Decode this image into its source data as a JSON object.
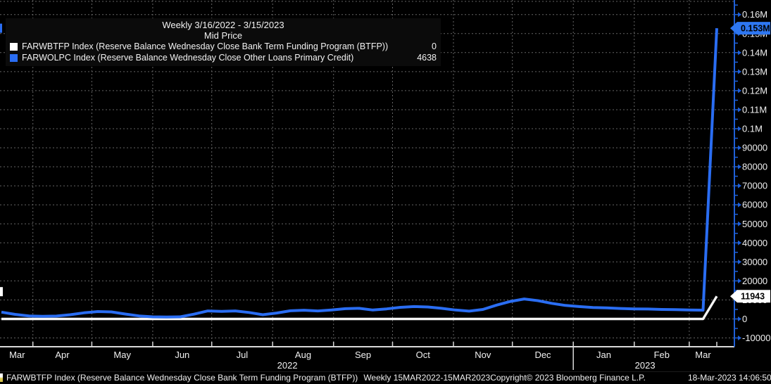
{
  "accent_colors": {
    "line_blue": "#2a6df2",
    "axis_blue": "#1f5fd6",
    "badge_blue": "#2e77f2",
    "grid_gray": "#646464",
    "text_white": "#f0f0f0"
  },
  "legend": {
    "title": "Weekly 3/16/2022 - 3/15/2023",
    "subtitle": "Mid Price",
    "items": [
      {
        "label": "FARWBTFP Index (Reserve Balance Wednesday Close Bank Term Funding Program (BTFP))",
        "value": "0",
        "color": "#ffffff"
      },
      {
        "label": "FARWOLPC Index (Reserve Balance Wednesday Close Other Loans Primary Credit)",
        "value": "4638",
        "color": "#2a6df2"
      }
    ]
  },
  "status_bar": {
    "ticker_text": "FARWBTFP Index (Reserve Balance Wednesday Close Bank Term Funding Program (BTFP))",
    "range_text": "Weekly 15MAR2022-15MAR2023",
    "copyright_text": "Copyright© 2023 Bloomberg Finance L.P.",
    "datetime_text": "18-Mar-2023 14:06:50"
  },
  "chart_data": {
    "type": "line",
    "title": "Weekly 3/16/2022 - 3/15/2023",
    "subtitle": "Mid Price",
    "x_frequency": "weekly",
    "x_start_date": "3/16/2022",
    "x_end_date": "3/15/2023",
    "x_month_labels": [
      "Mar",
      "Apr",
      "May",
      "Jun",
      "Jul",
      "Aug",
      "Sep",
      "Oct",
      "Nov",
      "Dec",
      "Jan",
      "Feb",
      "Mar"
    ],
    "x_month_start_days": [
      16,
      46,
      77,
      107,
      138,
      169,
      199,
      230,
      260,
      291,
      322,
      350
    ],
    "x_year_labels": [
      "2022",
      "2023"
    ],
    "ylim": [
      -15000,
      167000
    ],
    "grid": true,
    "y_ticks": [
      {
        "v": 160000,
        "label": "0.16M"
      },
      {
        "v": 150000,
        "label": "0.15M"
      },
      {
        "v": 140000,
        "label": "0.14M"
      },
      {
        "v": 130000,
        "label": "0.13M"
      },
      {
        "v": 120000,
        "label": "0.12M"
      },
      {
        "v": 110000,
        "label": "0.11M"
      },
      {
        "v": 100000,
        "label": "0.1M"
      },
      {
        "v": 90000,
        "label": "90000"
      },
      {
        "v": 80000,
        "label": "80000"
      },
      {
        "v": 70000,
        "label": "70000"
      },
      {
        "v": 60000,
        "label": "60000"
      },
      {
        "v": 50000,
        "label": "50000"
      },
      {
        "v": 40000,
        "label": "40000"
      },
      {
        "v": 30000,
        "label": "30000"
      },
      {
        "v": 20000,
        "label": "20000"
      },
      {
        "v": 10000,
        "label": "10000"
      },
      {
        "v": 0,
        "label": "0"
      },
      {
        "v": -10000,
        "label": "-10000"
      }
    ],
    "series": [
      {
        "name": "FARWBTFP Index (Reserve Balance Wednesday Close Bank Term Funding Program (BTFP))",
        "color": "#f5f5f5",
        "badge_label": "11943",
        "badge_bg": "#ffffff",
        "last_value": 11943,
        "values": [
          0,
          0,
          0,
          0,
          0,
          0,
          0,
          0,
          0,
          0,
          0,
          0,
          0,
          0,
          0,
          0,
          0,
          0,
          0,
          0,
          0,
          0,
          0,
          0,
          0,
          0,
          0,
          0,
          0,
          0,
          0,
          0,
          0,
          0,
          0,
          0,
          0,
          0,
          0,
          0,
          0,
          0,
          0,
          0,
          0,
          0,
          0,
          0,
          0,
          0,
          0,
          0,
          11943
        ]
      },
      {
        "name": "FARWOLPC Index (Reserve Balance Wednesday Close Other Loans Primary Credit)",
        "color": "#2a6df2",
        "badge_label": "0.153M",
        "badge_bg": "#2e77f2",
        "last_value": 152851,
        "values": [
          3600,
          2400,
          1600,
          1400,
          1500,
          2200,
          3200,
          3900,
          3700,
          2600,
          1600,
          1100,
          1000,
          1100,
          2500,
          4200,
          4000,
          4200,
          3400,
          2200,
          3100,
          4300,
          4600,
          4200,
          4700,
          5400,
          5600,
          4700,
          5300,
          6100,
          6500,
          6300,
          5600,
          4700,
          4100,
          5000,
          7300,
          9200,
          10500,
          9600,
          8200,
          7100,
          6500,
          6000,
          5800,
          5500,
          5300,
          5200,
          5000,
          4900,
          4700,
          4638,
          152851
        ]
      }
    ]
  }
}
